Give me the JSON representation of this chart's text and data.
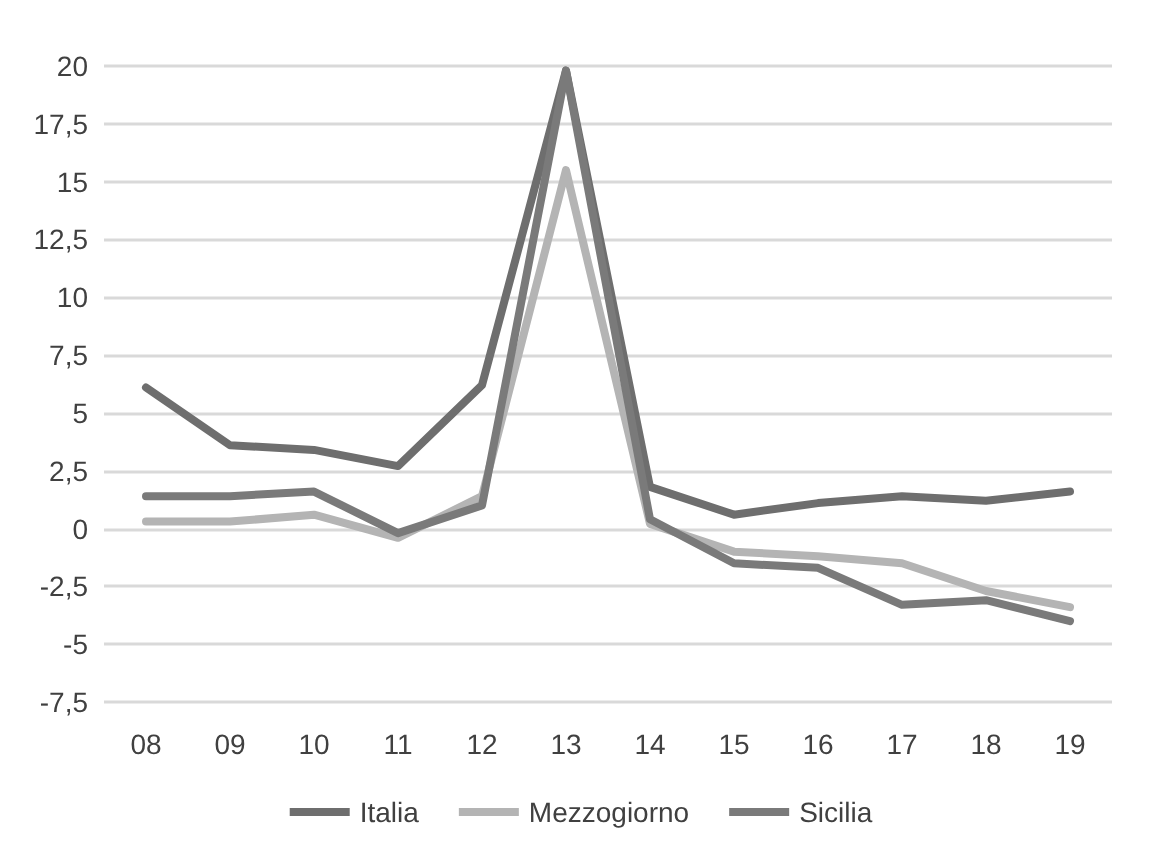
{
  "chart_data": {
    "type": "line",
    "categories": [
      "08",
      "09",
      "10",
      "11",
      "12",
      "13",
      "14",
      "15",
      "16",
      "17",
      "18",
      "19"
    ],
    "series": [
      {
        "name": "Italia",
        "color": "#6e6e6e",
        "values": [
          6.1,
          3.6,
          3.4,
          2.7,
          6.2,
          19.8,
          1.8,
          0.6,
          1.1,
          1.4,
          1.2,
          1.6
        ]
      },
      {
        "name": "Mezzogiorno",
        "color": "#b4b4b4",
        "values": [
          0.3,
          0.3,
          0.6,
          -0.4,
          1.4,
          15.5,
          0.2,
          -1.0,
          -1.2,
          -1.5,
          -2.7,
          -3.4
        ]
      },
      {
        "name": "Sicilia",
        "color": "#7a7a7a",
        "values": [
          1.4,
          1.4,
          1.6,
          -0.2,
          1.0,
          19.8,
          0.4,
          -1.5,
          -1.7,
          -3.3,
          -3.1,
          -4.0
        ]
      }
    ],
    "ylim": [
      -7.5,
      20
    ],
    "yticks": [
      {
        "value": -7.5,
        "label": "-7,5"
      },
      -5,
      {
        "value": -2.5,
        "label": "-2,5"
      },
      0,
      {
        "value": 2.5,
        "label": "2,5"
      },
      5,
      {
        "value": 7.5,
        "label": "7,5"
      },
      10,
      {
        "value": 12.5,
        "label": "12,5"
      },
      15,
      {
        "value": 17.5,
        "label": "17,5"
      },
      20
    ],
    "grid": "y",
    "legend": "bottom",
    "marker": "none",
    "line_style": "solid"
  }
}
